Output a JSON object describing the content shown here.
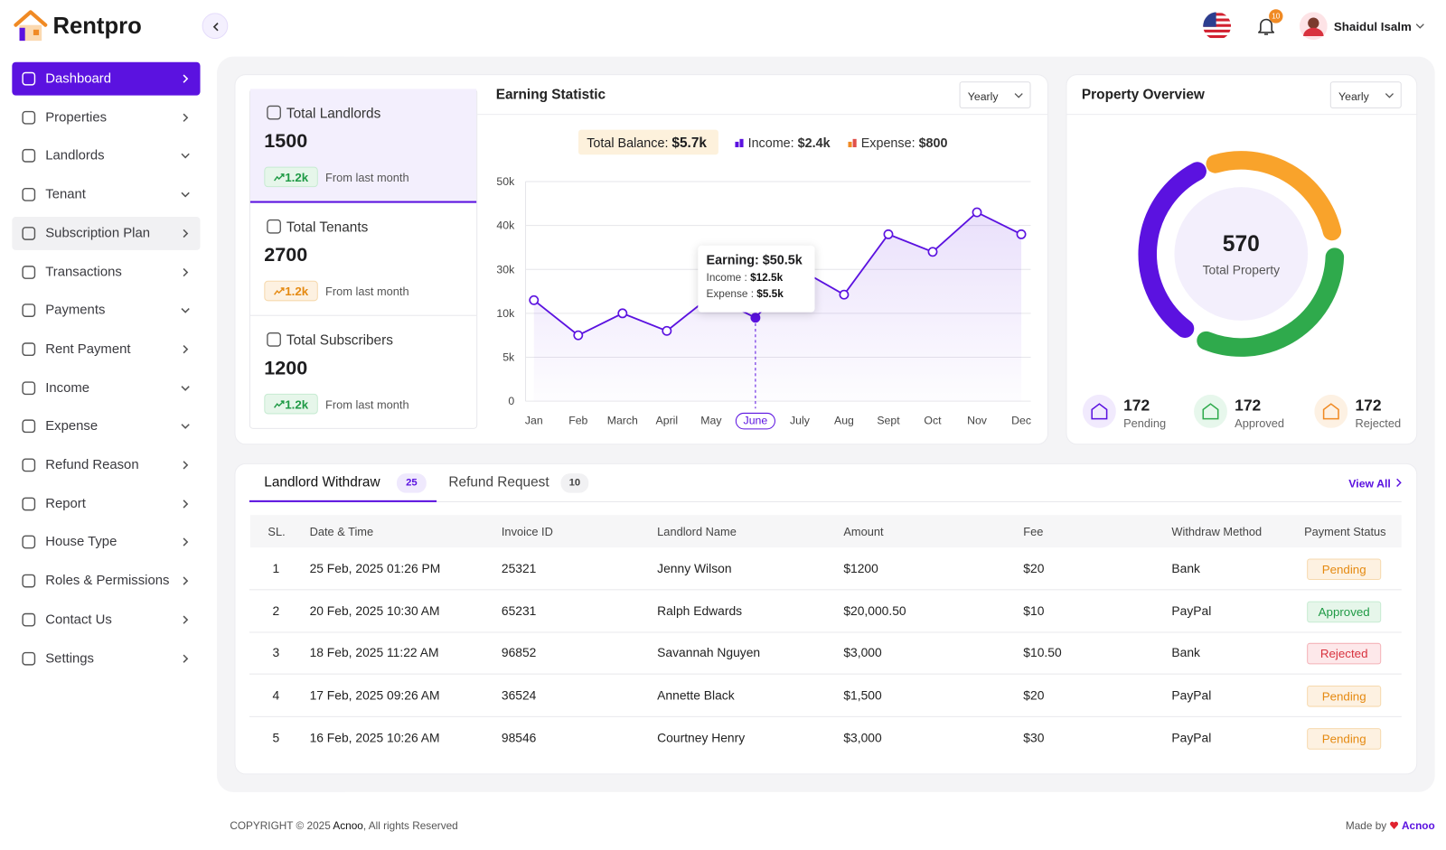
{
  "header": {
    "brand": "Rentpro",
    "notifications": "10",
    "user": "Shaidul Isalm"
  },
  "sidebar": {
    "items": [
      "Dashboard",
      "Properties",
      "Landlords",
      "Tenant",
      "Subscription Plan",
      "Transactions",
      "Payments",
      "Rent Payment",
      "Income",
      "Expense",
      "Refund Reason",
      "Report",
      "House Type",
      "Roles & Permissions",
      "Contact Us",
      "Settings"
    ]
  },
  "stats": [
    {
      "title": "Total Landlords",
      "value": "1500",
      "change": "1.2k",
      "note": "From last month"
    },
    {
      "title": "Total Tenants",
      "value": "2700",
      "change": "1.2k",
      "note": "From last month"
    },
    {
      "title": "Total Subscribers",
      "value": "1200",
      "change": "1.2k",
      "note": "From last month"
    }
  ],
  "earning": {
    "title": "Earning Statistic",
    "period": "Yearly",
    "total_balance": {
      "label": "Total Balance:",
      "value": "$5.7k"
    },
    "income": {
      "label": "Income:",
      "value": "$2.4k"
    },
    "expense": {
      "label": "Expense:",
      "value": "$800"
    },
    "tooltip": {
      "earning": "Earning: $50.5k",
      "income_label": "Income :",
      "income": "$12.5k",
      "expense_label": "Expense :",
      "expense": "$5.5k"
    }
  },
  "chart_data": {
    "type": "line",
    "categories": [
      "Jan",
      "Feb",
      "March",
      "April",
      "May",
      "June",
      "July",
      "Aug",
      "Sept",
      "Oct",
      "Nov",
      "Dec"
    ],
    "values": [
      16000,
      7500,
      10000,
      8000,
      18000,
      9500,
      30000,
      18500,
      38000,
      34000,
      43000,
      38000
    ],
    "color": "#5b12e0",
    "ylim": [
      0,
      50000
    ],
    "yticks": [
      {
        "value": 0,
        "label": "0"
      },
      {
        "value": 5000,
        "label": "5k"
      },
      {
        "value": 10000,
        "label": "10k"
      },
      {
        "value": 30000,
        "label": "30k"
      },
      {
        "value": 40000,
        "label": "40k"
      },
      {
        "value": 50000,
        "label": "50k"
      }
    ],
    "grid": true,
    "highlight": 5
  },
  "property": {
    "title": "Property Overview",
    "period": "Yearly",
    "total": "570",
    "total_label": "Total Property",
    "stats": [
      {
        "value": "172",
        "label": "Pending"
      },
      {
        "value": "172",
        "label": "Approved"
      },
      {
        "value": "172",
        "label": "Rejected"
      }
    ]
  },
  "table": {
    "tabs": [
      {
        "label": "Landlord Withdraw",
        "count": "25"
      },
      {
        "label": "Refund Request",
        "count": "10"
      }
    ],
    "view_all": "View All",
    "columns": [
      "SL.",
      "Date & Time",
      "Invoice ID",
      "Landlord Name",
      "Amount",
      "Fee",
      "Withdraw Method",
      "Payment Status"
    ],
    "rows": [
      [
        "1",
        "25 Feb, 2025 01:26 PM",
        "25321",
        "Jenny Wilson",
        "$1200",
        "$20",
        "Bank",
        "Pending"
      ],
      [
        "2",
        "20 Feb, 2025 10:30 AM",
        "65231",
        "Ralph Edwards",
        "$20,000.50",
        "$10",
        "PayPal",
        "Approved"
      ],
      [
        "3",
        "18 Feb, 2025 11:22 AM",
        "96852",
        "Savannah Nguyen",
        "$3,000",
        "$10.50",
        "Bank",
        "Rejected"
      ],
      [
        "4",
        "17 Feb, 2025 09:26 AM",
        "36524",
        "Annette Black",
        "$1,500",
        "$20",
        "PayPal",
        "Pending"
      ],
      [
        "5",
        "16 Feb, 2025 10:26 AM",
        "98546",
        "Courtney Henry",
        "$3,000",
        "$30",
        "PayPal",
        "Pending"
      ]
    ]
  },
  "footer": {
    "copyright": "COPYRIGHT © 2025",
    "brand": "Acnoo",
    "rights": ", All rights Reserved",
    "made_by": "Made by",
    "maker": "Acnoo"
  }
}
